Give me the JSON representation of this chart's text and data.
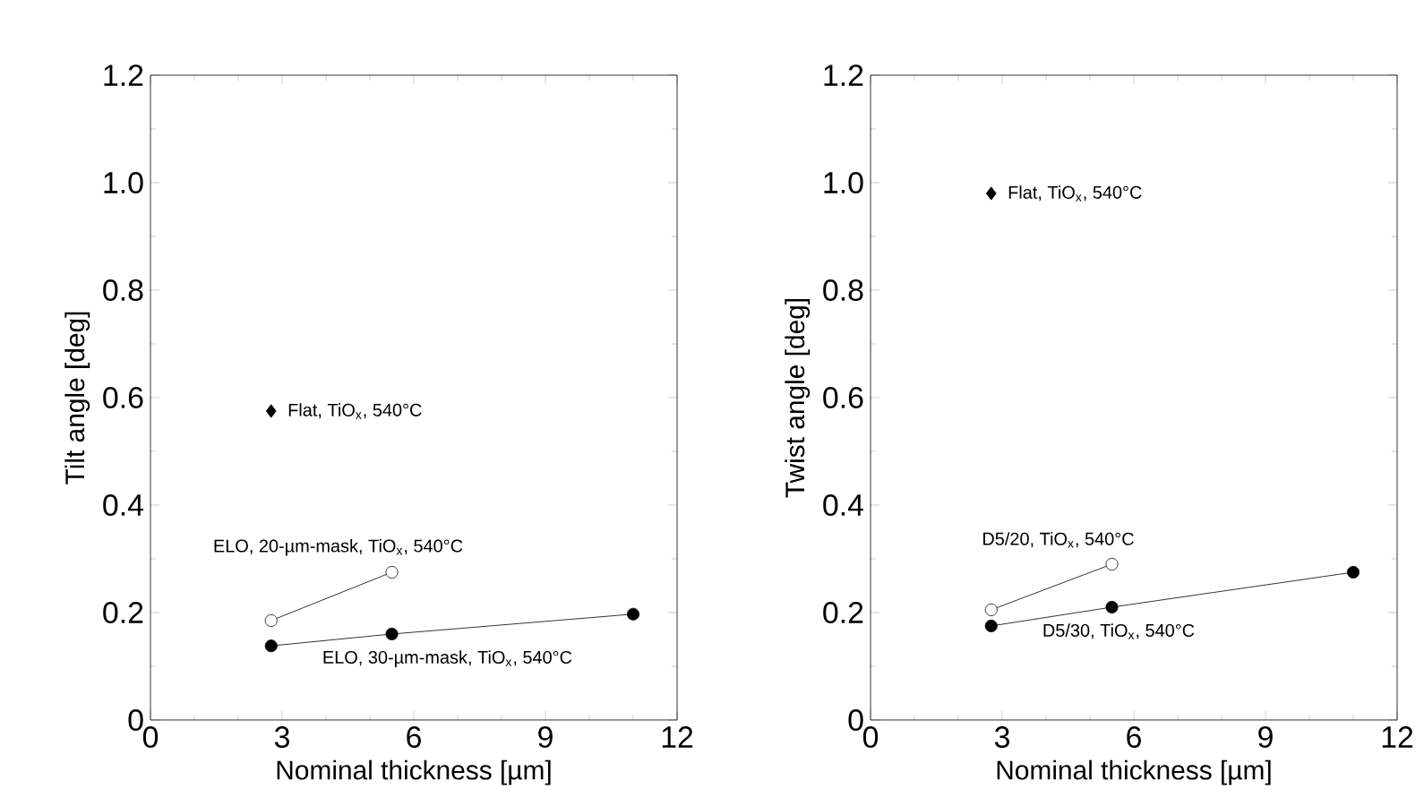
{
  "chart_data": [
    {
      "type": "line",
      "xlabel": "Nominal thickness [µm]",
      "ylabel": "Tilt angle [deg]",
      "xlim": [
        0,
        12
      ],
      "xticks": [
        0,
        3,
        6,
        9,
        12
      ],
      "ylim": [
        0,
        1.2
      ],
      "yticks": [
        0,
        0.2,
        0.4,
        0.6,
        0.8,
        {
          "value": 1.0,
          "label": "1.0"
        },
        1.2
      ],
      "grid": false,
      "series": [
        {
          "name": "Flat, TiO$_{x}$, 540°C",
          "type": "scatter",
          "marker": "diamond",
          "color": "#000000",
          "x": [
            2.75
          ],
          "values": [
            0.575
          ]
        },
        {
          "name": "ELO, 20-µm-mask, TiO$_{x}$, 540°C",
          "marker": "circle",
          "color": "#ffffff",
          "x": [
            2.75,
            5.5
          ],
          "values": [
            0.185,
            0.275
          ]
        },
        {
          "name": "ELO, 30-µm-mask, TiO$_{x}$, 540°C",
          "marker": "circle",
          "color": "#000000",
          "x": [
            2.75,
            5.5,
            11
          ],
          "values": [
            0.138,
            0.16,
            0.197
          ]
        }
      ]
    },
    {
      "type": "line",
      "xlabel": "Nominal thickness [µm]",
      "ylabel": "Twist angle [deg]",
      "xlim": [
        0,
        12
      ],
      "xticks": [
        0,
        3,
        6,
        9,
        12
      ],
      "ylim": [
        0,
        1.2
      ],
      "yticks": [
        0,
        0.2,
        0.4,
        0.6,
        0.8,
        {
          "value": 1.0,
          "label": "1.0"
        },
        1.2
      ],
      "grid": false,
      "series": [
        {
          "name": "Flat, TiO$_{x}$, 540°C",
          "type": "scatter",
          "marker": "diamond",
          "color": "#000000",
          "x": [
            2.75
          ],
          "values": [
            0.98
          ]
        },
        {
          "name": "D5/20, TiO$_{x}$, 540°C",
          "marker": "circle",
          "color": "#ffffff",
          "x": [
            2.75,
            5.5
          ],
          "values": [
            0.205,
            0.29
          ]
        },
        {
          "name": "D5/30, TiO$_{x}$, 540°C",
          "marker": "circle",
          "color": "#000000",
          "x": [
            2.75,
            5.5,
            11
          ],
          "values": [
            0.175,
            0.21,
            0.275
          ]
        }
      ]
    }
  ]
}
